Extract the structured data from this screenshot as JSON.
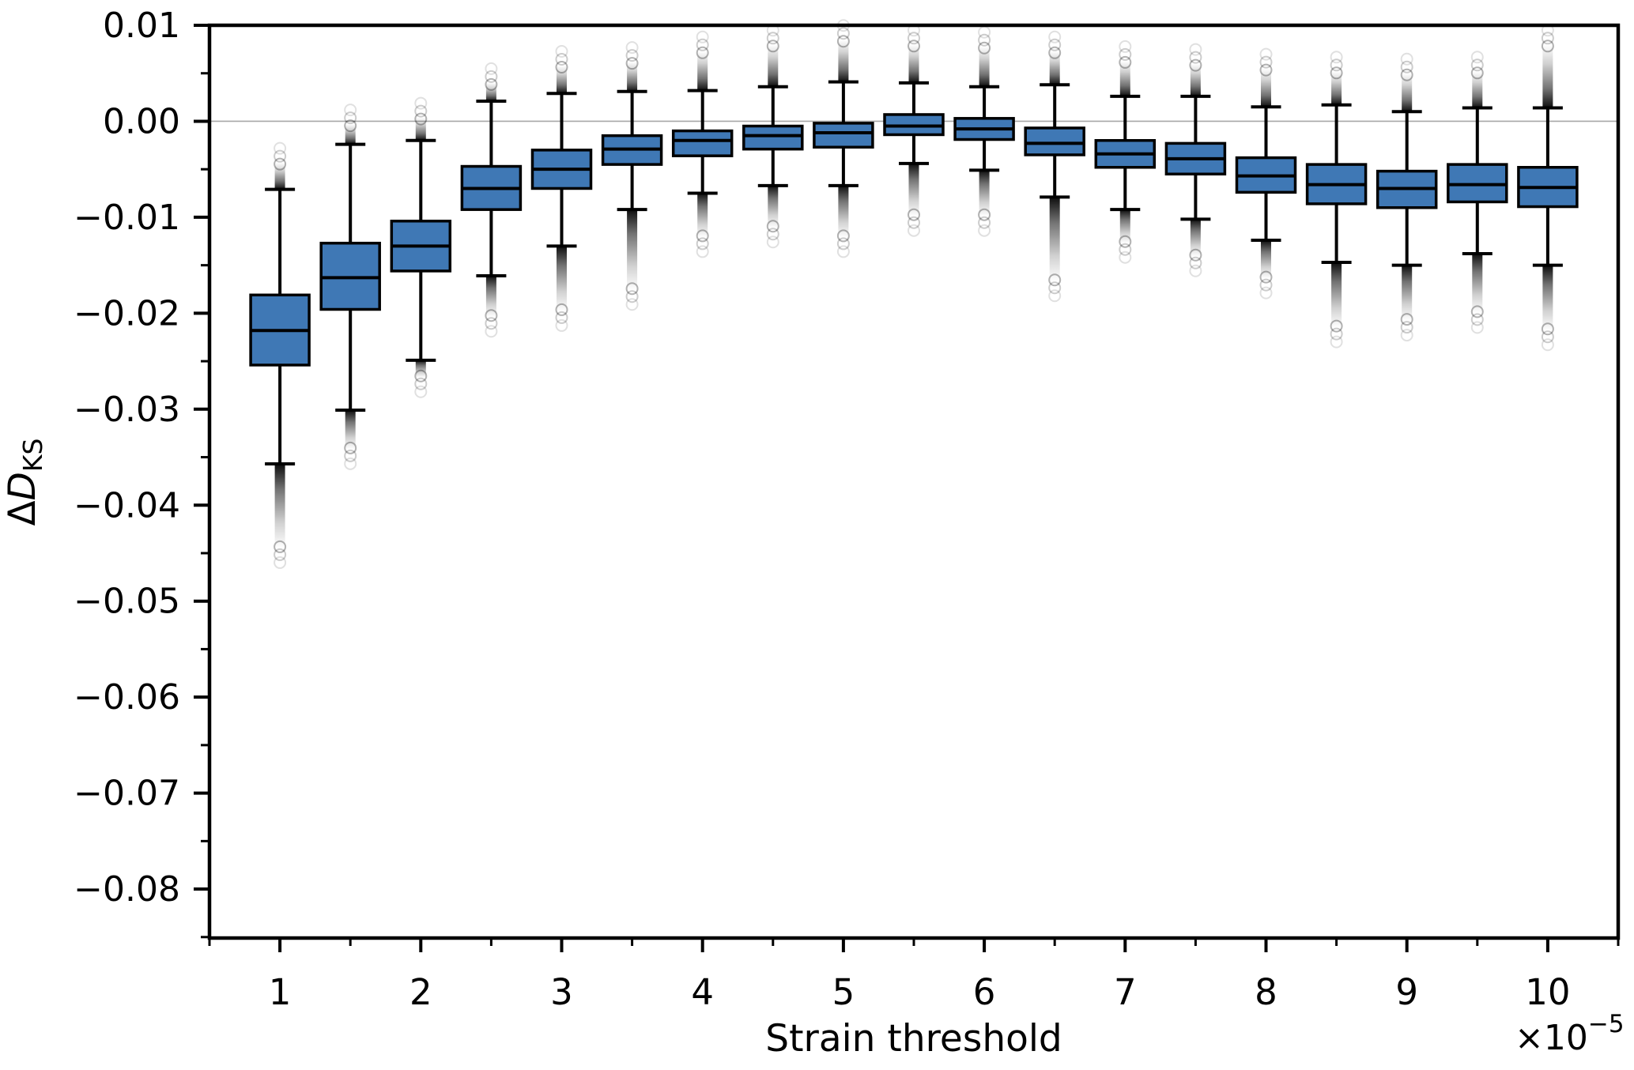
{
  "figure": {
    "background": "#ffffff"
  },
  "axes": {
    "xlabel": "Strain threshold",
    "ylabel_delta": "Δ",
    "ylabel_D": "D",
    "ylabel_sub": "KS",
    "offset_base": "×10",
    "offset_exp": "−5"
  },
  "chart_data": {
    "type": "box",
    "title": "",
    "xlabel": "Strain threshold",
    "ylabel": "ΔD_KS",
    "x_scale_factor": "×10⁻⁵",
    "xlim": [
      0.5,
      10.5
    ],
    "ylim": [
      -0.0851,
      0.01
    ],
    "grid": "zero-line-only",
    "legend": "none",
    "x_major_ticks": [
      1,
      2,
      3,
      4,
      5,
      6,
      7,
      8,
      9,
      10
    ],
    "x_minor_ticks": [
      0.5,
      1.5,
      2.5,
      3.5,
      4.5,
      5.5,
      6.5,
      7.5,
      8.5,
      9.5,
      10.5
    ],
    "y_major_ticks": [
      {
        "v": 0.01,
        "label": "0.01"
      },
      {
        "v": 0.0,
        "label": "0.00"
      },
      {
        "v": -0.01,
        "label": "−0.01"
      },
      {
        "v": -0.02,
        "label": "−0.02"
      },
      {
        "v": -0.03,
        "label": "−0.03"
      },
      {
        "v": -0.04,
        "label": "−0.04"
      },
      {
        "v": -0.05,
        "label": "−0.05"
      },
      {
        "v": -0.06,
        "label": "−0.06"
      },
      {
        "v": -0.07,
        "label": "−0.07"
      },
      {
        "v": -0.08,
        "label": "−0.08"
      }
    ],
    "y_minor_ticks": [
      0.005,
      -0.005,
      -0.015,
      -0.025,
      -0.035,
      -0.045,
      -0.055,
      -0.065,
      -0.075,
      -0.085
    ],
    "zero_line": 0.0,
    "colors": {
      "box_fill": "#3f78b5",
      "box_edge": "#000000",
      "whisker": "#000000",
      "median": "#000000",
      "zero_line": "#a8a8a8",
      "outlier": "#000000"
    },
    "boxes": [
      {
        "pos": 1.0,
        "whisker_low": -0.0357,
        "q1": -0.0254,
        "median": -0.0218,
        "q3": -0.0181,
        "whisker_high": -0.0071,
        "outliers_low_to": -0.0445,
        "outliers_high_to": -0.0043
      },
      {
        "pos": 1.5,
        "whisker_low": -0.0301,
        "q1": -0.0196,
        "median": -0.0163,
        "q3": -0.0127,
        "whisker_high": -0.0024,
        "outliers_low_to": -0.0342,
        "outliers_high_to": -0.0003
      },
      {
        "pos": 2.0,
        "whisker_low": -0.0249,
        "q1": -0.0156,
        "median": -0.013,
        "q3": -0.0104,
        "whisker_high": -0.002,
        "outliers_low_to": -0.0267,
        "outliers_high_to": 0.0004
      },
      {
        "pos": 2.5,
        "whisker_low": -0.0161,
        "q1": -0.0092,
        "median": -0.007,
        "q3": -0.0047,
        "whisker_high": 0.0021,
        "outliers_low_to": -0.0204,
        "outliers_high_to": 0.004
      },
      {
        "pos": 3.0,
        "whisker_low": -0.013,
        "q1": -0.007,
        "median": -0.005,
        "q3": -0.003,
        "whisker_high": 0.0029,
        "outliers_low_to": -0.0198,
        "outliers_high_to": 0.0058
      },
      {
        "pos": 3.5,
        "whisker_low": -0.0092,
        "q1": -0.0045,
        "median": -0.0029,
        "q3": -0.0015,
        "whisker_high": 0.0031,
        "outliers_low_to": -0.0176,
        "outliers_high_to": 0.0062
      },
      {
        "pos": 4.0,
        "whisker_low": -0.0075,
        "q1": -0.0036,
        "median": -0.002,
        "q3": -0.001,
        "whisker_high": 0.0032,
        "outliers_low_to": -0.0121,
        "outliers_high_to": 0.0073
      },
      {
        "pos": 4.5,
        "whisker_low": -0.0067,
        "q1": -0.0029,
        "median": -0.0015,
        "q3": -0.0005,
        "whisker_high": 0.0036,
        "outliers_low_to": -0.0111,
        "outliers_high_to": 0.008
      },
      {
        "pos": 5.0,
        "whisker_low": -0.0067,
        "q1": -0.0027,
        "median": -0.0012,
        "q3": -0.0002,
        "whisker_high": 0.0041,
        "outliers_low_to": -0.0121,
        "outliers_high_to": 0.0085
      },
      {
        "pos": 5.5,
        "whisker_low": -0.0044,
        "q1": -0.0014,
        "median": -0.0005,
        "q3": 0.0007,
        "whisker_high": 0.004,
        "outliers_low_to": -0.0099,
        "outliers_high_to": 0.008
      },
      {
        "pos": 6.0,
        "whisker_low": -0.0051,
        "q1": -0.0019,
        "median": -0.0008,
        "q3": 0.0003,
        "whisker_high": 0.0036,
        "outliers_low_to": -0.0099,
        "outliers_high_to": 0.0078
      },
      {
        "pos": 6.5,
        "whisker_low": -0.0079,
        "q1": -0.0035,
        "median": -0.0023,
        "q3": -0.0007,
        "whisker_high": 0.0038,
        "outliers_low_to": -0.0167,
        "outliers_high_to": 0.0073
      },
      {
        "pos": 7.0,
        "whisker_low": -0.0092,
        "q1": -0.0048,
        "median": -0.0034,
        "q3": -0.002,
        "whisker_high": 0.0026,
        "outliers_low_to": -0.0127,
        "outliers_high_to": 0.0063
      },
      {
        "pos": 7.5,
        "whisker_low": -0.0102,
        "q1": -0.0055,
        "median": -0.0039,
        "q3": -0.0023,
        "whisker_high": 0.0026,
        "outliers_low_to": -0.0141,
        "outliers_high_to": 0.006
      },
      {
        "pos": 8.0,
        "whisker_low": -0.0124,
        "q1": -0.0074,
        "median": -0.0057,
        "q3": -0.0038,
        "whisker_high": 0.0015,
        "outliers_low_to": -0.0164,
        "outliers_high_to": 0.0055
      },
      {
        "pos": 8.5,
        "whisker_low": -0.0147,
        "q1": -0.0086,
        "median": -0.0066,
        "q3": -0.0045,
        "whisker_high": 0.0017,
        "outliers_low_to": -0.0215,
        "outliers_high_to": 0.0052
      },
      {
        "pos": 9.0,
        "whisker_low": -0.015,
        "q1": -0.009,
        "median": -0.007,
        "q3": -0.0052,
        "whisker_high": 0.001,
        "outliers_low_to": -0.0208,
        "outliers_high_to": 0.005
      },
      {
        "pos": 9.5,
        "whisker_low": -0.0138,
        "q1": -0.0084,
        "median": -0.0066,
        "q3": -0.0045,
        "whisker_high": 0.0014,
        "outliers_low_to": -0.02,
        "outliers_high_to": 0.0052
      },
      {
        "pos": 10.0,
        "whisker_low": -0.015,
        "q1": -0.0089,
        "median": -0.0069,
        "q3": -0.0048,
        "whisker_high": 0.0014,
        "outliers_low_to": -0.0218,
        "outliers_high_to": 0.008
      }
    ]
  }
}
